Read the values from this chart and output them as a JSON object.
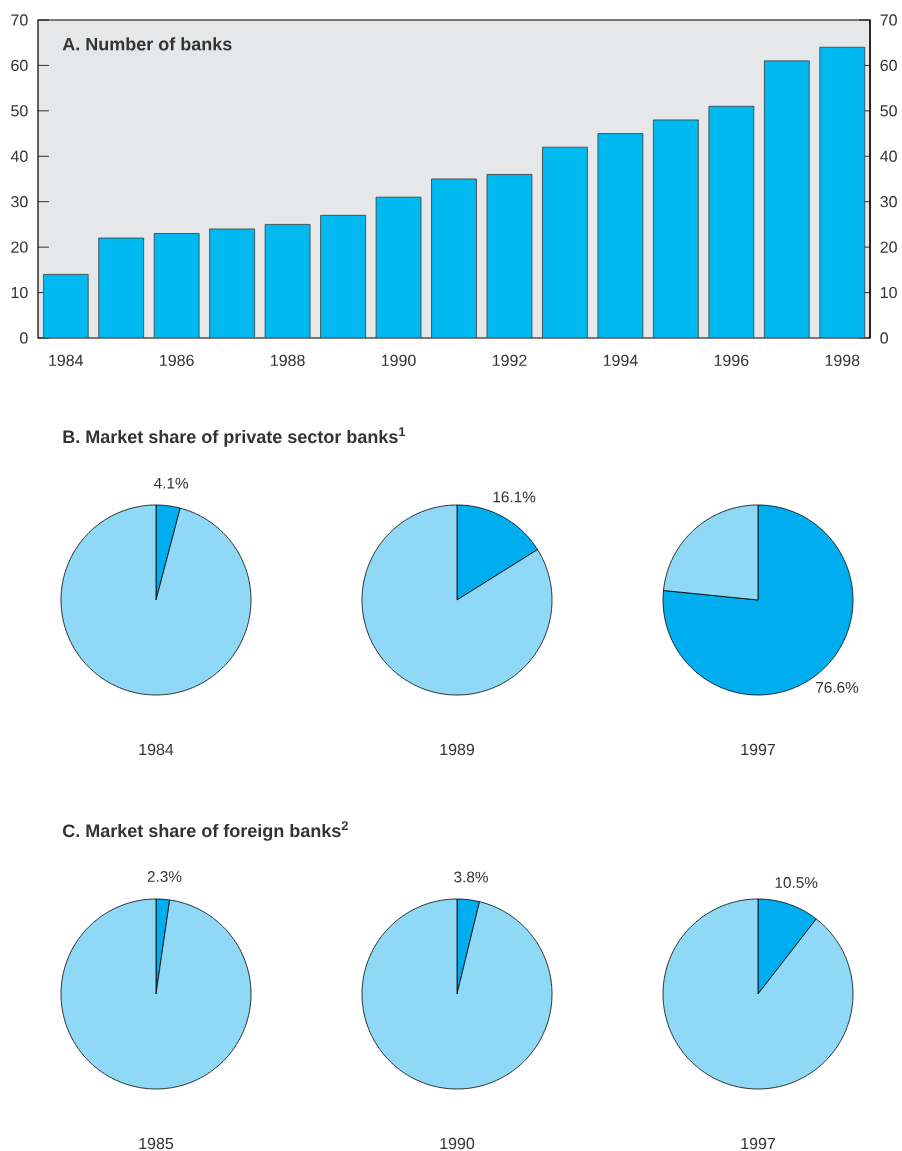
{
  "chart_data": [
    {
      "type": "bar",
      "title": "A. Number of banks",
      "categories": [
        "1984",
        null,
        "1986",
        null,
        "1988",
        null,
        "1990",
        null,
        "1992",
        null,
        "1994",
        null,
        "1996",
        null,
        "1998"
      ],
      "values": [
        14,
        22,
        23,
        24,
        25,
        27,
        31,
        35,
        36,
        42,
        45,
        48,
        51,
        61,
        64
      ],
      "color": "#00b9f1",
      "ylim": [
        0,
        70
      ],
      "yticks": [
        0,
        10,
        20,
        30,
        40,
        50,
        60,
        70
      ],
      "y2lim": [
        0,
        70
      ],
      "y2ticks": [
        0,
        10,
        20,
        30,
        40,
        50,
        60,
        70
      ]
    },
    {
      "type": "pie",
      "title": "B. Market share of private sector banks$^{1}$",
      "xlabel": "1984",
      "categories": [
        null,
        null
      ],
      "values": [
        4.1,
        95.9
      ],
      "colors": [
        "#00aeef",
        "#8fd8f6"
      ],
      "value_labels": [
        "4.1%",
        null
      ]
    },
    {
      "type": "pie",
      "xlabel": "1989",
      "categories": [
        null,
        null
      ],
      "values": [
        16.1,
        83.9
      ],
      "colors": [
        "#00aeef",
        "#8fd8f6"
      ],
      "value_labels": [
        "16.1%",
        null
      ]
    },
    {
      "type": "pie",
      "xlabel": "1997",
      "categories": [
        null,
        null
      ],
      "values": [
        76.6,
        23.4
      ],
      "colors": [
        "#00aeef",
        "#8fd8f6"
      ],
      "value_labels": [
        "76.6%",
        null
      ]
    },
    {
      "type": "pie",
      "title": "C. Market share of foreign banks$^{2}$",
      "xlabel": "1985",
      "categories": [
        null,
        null
      ],
      "values": [
        2.3,
        97.7
      ],
      "colors": [
        "#00aeef",
        "#8fd8f6"
      ],
      "value_labels": [
        "2.3%",
        null
      ]
    },
    {
      "type": "pie",
      "xlabel": "1990",
      "categories": [
        null,
        null
      ],
      "values": [
        3.8,
        96.2
      ],
      "colors": [
        "#00aeef",
        "#8fd8f6"
      ],
      "value_labels": [
        "3.8%",
        null
      ]
    },
    {
      "type": "pie",
      "xlabel": "1997",
      "categories": [
        null,
        null
      ],
      "values": [
        10.5,
        89.5
      ],
      "colors": [
        "#00aeef",
        "#8fd8f6"
      ],
      "value_labels": [
        "10.5%",
        null
      ]
    }
  ]
}
